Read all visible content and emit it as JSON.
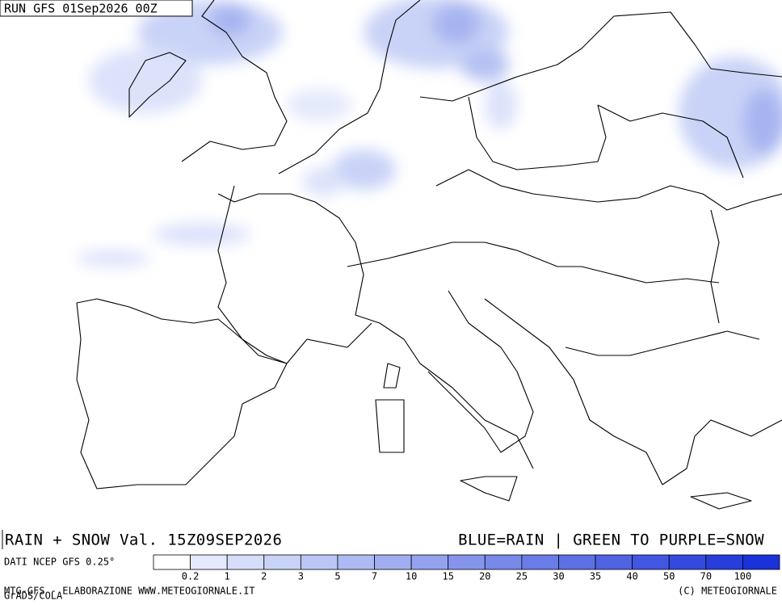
{
  "header": {
    "run": "RUN GFS 01Sep2026 00Z"
  },
  "footer": {
    "title": "RAIN + SNOW Val. 15Z09SEP2026",
    "key_note": "BLUE=RAIN | GREEN TO PURPLE=SNOW",
    "source": "DATI NCEP GFS 0.25°",
    "credit": "MTG-GFS - ELABORAZIONE WWW.METEOGIORNALE.IT",
    "software": "GrADS/COLA",
    "copyright": "(C) METEOGIORNALE"
  },
  "legend": {
    "labels": [
      "0.2",
      "1",
      "2",
      "3",
      "5",
      "7",
      "10",
      "15",
      "20",
      "25",
      "30",
      "35",
      "40",
      "50",
      "70",
      "100"
    ],
    "colors": [
      "#ffffff",
      "#e4e9fb",
      "#d6defa",
      "#c9d3f7",
      "#bbc6f5",
      "#aebaf3",
      "#a0aef1",
      "#93a2ef",
      "#8595ec",
      "#7889ea",
      "#6a7ce8",
      "#5d70e6",
      "#4f63e3",
      "#4257e1",
      "#344adf",
      "#273edc",
      "#1a32da"
    ]
  }
}
